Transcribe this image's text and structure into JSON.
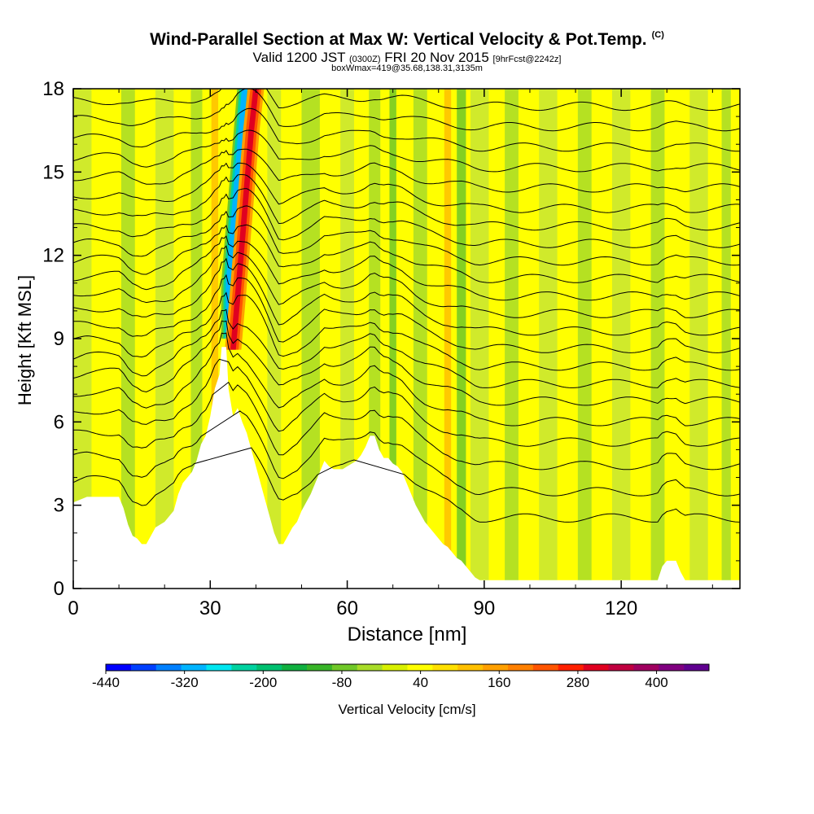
{
  "chart_data": {
    "type": "heatmap",
    "title": "Wind-Parallel Section at Max W: Vertical Velocity & Pot.Temp.",
    "title_mark": "(C)",
    "subtitle_main": "Valid 1200 JST",
    "subtitle_utc": "(0300Z)",
    "subtitle_date": "FRI 20 Nov 2015",
    "subtitle_fcst": "[9hrFcst@2242z]",
    "subtitle2": "boxWmax=419@35.68,138.31,3135m",
    "xlabel": "Distance [nm]",
    "ylabel": "Height [Kft MSL]",
    "xlim": [
      0,
      146
    ],
    "ylim": [
      0,
      18
    ],
    "xticks": [
      "0",
      "30",
      "60",
      "90",
      "120"
    ],
    "yticks": [
      "0",
      "3",
      "6",
      "9",
      "12",
      "15",
      "18"
    ],
    "colorbar": {
      "label": "Vertical Velocity [cm/s]",
      "range": [
        -440,
        480
      ],
      "tick_labels": [
        "-440",
        "-320",
        "-200",
        "-80",
        "40",
        "160",
        "280",
        "400"
      ],
      "colors": [
        "#0000ff",
        "#0040ff",
        "#0080ff",
        "#00b4ff",
        "#00e6f0",
        "#00d2a0",
        "#00c070",
        "#10b040",
        "#38b428",
        "#70c828",
        "#a8dc28",
        "#d8f000",
        "#ffff00",
        "#ffe000",
        "#ffc000",
        "#ffa000",
        "#ff8000",
        "#ff5500",
        "#ff2000",
        "#e00020",
        "#c00040",
        "#a00060",
        "#800080",
        "#600090"
      ]
    },
    "terrain_kft": [
      [
        0,
        3.1
      ],
      [
        3,
        3.3
      ],
      [
        10,
        3.3
      ],
      [
        11,
        2.9
      ],
      [
        12,
        2.3
      ],
      [
        13,
        1.9
      ],
      [
        14,
        1.8
      ],
      [
        15,
        1.6
      ],
      [
        16,
        1.6
      ],
      [
        17,
        1.9
      ],
      [
        18,
        2.2
      ],
      [
        20,
        2.4
      ],
      [
        22,
        2.8
      ],
      [
        23,
        3.4
      ],
      [
        24,
        3.8
      ],
      [
        26,
        4.2
      ],
      [
        27,
        4.6
      ],
      [
        28,
        5.2
      ],
      [
        29,
        5.5
      ],
      [
        30,
        6.2
      ],
      [
        31,
        7.2
      ],
      [
        32,
        7.7
      ],
      [
        32.5,
        8.7
      ],
      [
        33.5,
        8.7
      ],
      [
        34,
        7.2
      ],
      [
        35,
        6.2
      ],
      [
        36,
        6.5
      ],
      [
        37,
        6.0
      ],
      [
        38,
        5.6
      ],
      [
        39,
        5.0
      ],
      [
        40,
        4.4
      ],
      [
        41,
        3.8
      ],
      [
        42,
        3.2
      ],
      [
        43,
        2.6
      ],
      [
        44,
        2.0
      ],
      [
        45,
        1.6
      ],
      [
        46,
        1.6
      ],
      [
        47,
        1.9
      ],
      [
        48,
        2.2
      ],
      [
        49,
        2.4
      ],
      [
        50,
        2.8
      ],
      [
        51,
        3.1
      ],
      [
        52,
        3.4
      ],
      [
        53,
        3.8
      ],
      [
        54,
        4.2
      ],
      [
        55,
        4.6
      ],
      [
        56,
        4.4
      ],
      [
        57,
        4.3
      ],
      [
        58,
        4.3
      ],
      [
        59,
        4.3
      ],
      [
        60,
        4.4
      ],
      [
        61,
        4.5
      ],
      [
        62,
        4.6
      ],
      [
        63,
        4.8
      ],
      [
        64,
        5.1
      ],
      [
        65,
        5.5
      ],
      [
        66,
        5.5
      ],
      [
        67,
        5.0
      ],
      [
        68,
        4.7
      ],
      [
        69,
        4.7
      ],
      [
        70,
        4.5
      ],
      [
        71,
        4.4
      ],
      [
        72,
        4.2
      ],
      [
        73,
        3.8
      ],
      [
        74,
        3.4
      ],
      [
        75,
        3.0
      ],
      [
        76,
        2.7
      ],
      [
        77,
        2.4
      ],
      [
        78,
        2.2
      ],
      [
        79,
        2.0
      ],
      [
        80,
        1.8
      ],
      [
        81,
        1.6
      ],
      [
        82,
        1.5
      ],
      [
        83,
        1.3
      ],
      [
        84,
        1.1
      ],
      [
        85,
        1.0
      ],
      [
        86,
        0.8
      ],
      [
        87,
        0.6
      ],
      [
        88,
        0.4
      ],
      [
        89,
        0.3
      ],
      [
        128,
        0.3
      ],
      [
        129,
        0.8
      ],
      [
        130,
        1.0
      ],
      [
        132,
        1.0
      ],
      [
        133,
        0.6
      ],
      [
        134,
        0.3
      ],
      [
        146,
        0.3
      ]
    ],
    "updraft_core_kft": [
      [
        35,
        8.6
      ],
      [
        36,
        10.5
      ],
      [
        37,
        12.5
      ],
      [
        38,
        14.5
      ],
      [
        39,
        16.5
      ],
      [
        40,
        18
      ]
    ],
    "downdraft_core_kft": [
      [
        34,
        9
      ],
      [
        34,
        11
      ],
      [
        35,
        13
      ],
      [
        36,
        15
      ],
      [
        37,
        17
      ],
      [
        37.5,
        18
      ]
    ],
    "isentrope_base_kft": [
      3.4,
      4.3,
      5.2,
      6.0,
      6.7,
      7.4,
      8.0,
      8.6,
      9.2,
      9.8,
      10.4,
      11.0,
      11.6,
      12.2,
      12.8,
      13.4,
      14.0,
      14.7,
      15.4,
      16.1,
      16.8,
      17.5
    ]
  }
}
